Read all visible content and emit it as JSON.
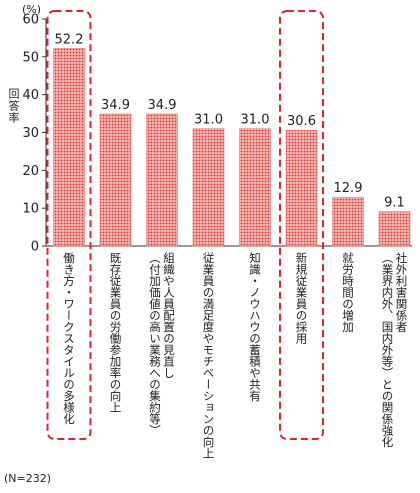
{
  "chart_data": {
    "type": "bar",
    "unit": "(%)",
    "ylabel": "回答率",
    "ylim": [
      0,
      60
    ],
    "yticks": [
      0,
      10,
      20,
      30,
      40,
      50,
      60
    ],
    "categories": [
      "働き方・ワークスタイルの多様化",
      "既存従業員の労働参加率の向上",
      "組織や人員配置の見直し（付加価値の高い業務への集約等）",
      "従業員の満足度やモチベーションの向上",
      "知識・ノウハウの蓄積や共有",
      "新規従業員の採用",
      "就労時間の増加",
      "社外利害関係者（業界内外、国内外等）との関係強化"
    ],
    "category_lines": [
      [
        "働き方・ワークスタイルの多様化"
      ],
      [
        "既存従業員の労働参加率の向上"
      ],
      [
        "組織や人員配置の見直し",
        "（付加価値の高い業務への集約等）"
      ],
      [
        "従業員の満足度やモチベーションの向上"
      ],
      [
        "知識・ノウハウの蓄積や共有"
      ],
      [
        "新規従業員の採用"
      ],
      [
        "就労時間の増加"
      ],
      [
        "社外利害関係者",
        "（業界内外、国内外等）との関係強化"
      ]
    ],
    "values": [
      52.2,
      34.9,
      34.9,
      31.0,
      31.0,
      30.6,
      12.9,
      9.1
    ],
    "value_labels": [
      "52.2",
      "34.9",
      "34.9",
      "31.0",
      "31.0",
      "30.6",
      "12.9",
      "9.1"
    ],
    "highlighted": [
      0,
      5
    ],
    "bar_color": "#f4a3a3",
    "dot_color": "#d9342b",
    "highlight_color": "#e0242b",
    "grid": false,
    "note": "(N=232)"
  }
}
